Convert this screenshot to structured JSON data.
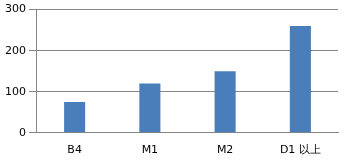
{
  "chart_data": {
    "type": "bar",
    "categories": [
      "B4",
      "M1",
      "M2",
      "D1 以上"
    ],
    "values": [
      75,
      120,
      150,
      260
    ],
    "color": "#4a7ebb",
    "ylim": [
      0,
      300
    ],
    "yticks": [
      0,
      100,
      200,
      300
    ],
    "grid": true
  }
}
